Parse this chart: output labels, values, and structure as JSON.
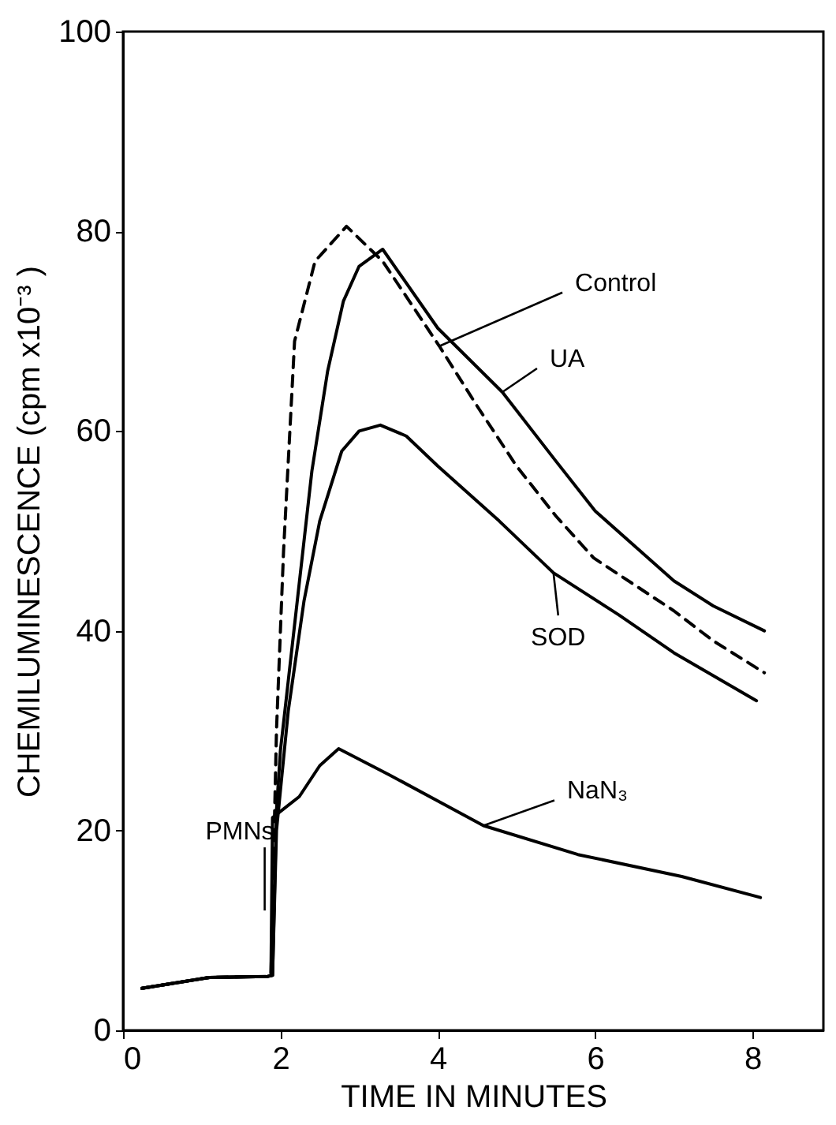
{
  "chart_data": {
    "type": "line",
    "xlabel": "TIME IN MINUTES",
    "ylabel": "CHEMILUMINESCENCE (cpm x10⁻³ )",
    "xlim": [
      0,
      8.9
    ],
    "ylim": [
      0,
      100
    ],
    "xticks": [
      0,
      2,
      4,
      6,
      8
    ],
    "yticks": [
      0,
      20,
      40,
      60,
      80,
      100
    ],
    "series": [
      {
        "color": "#000000",
        "line_style": "dashed",
        "x": [
          0.24,
          1.1,
          1.84,
          1.88,
          1.95,
          2.04,
          2.18,
          2.44,
          2.84,
          3.3,
          4.02,
          4.5,
          5.0,
          5.5,
          5.98,
          7.0,
          7.5,
          8.15
        ],
        "values": [
          4.2,
          5.3,
          5.4,
          5.5,
          30,
          48,
          69,
          77,
          80.5,
          77,
          68.5,
          62.5,
          56.5,
          51.5,
          47.3,
          42,
          39,
          35.8
        ]
      },
      {
        "color": "#000000",
        "line_style": "solid",
        "x": [
          0.24,
          1.1,
          1.84,
          1.9,
          1.95,
          2.0,
          2.2,
          2.4,
          2.6,
          2.8,
          3.0,
          3.3,
          4.0,
          4.82,
          5.5,
          6.0,
          6.5,
          7.0,
          7.5,
          8.15
        ],
        "values": [
          4.2,
          5.3,
          5.4,
          5.5,
          22,
          28,
          42,
          56,
          66,
          73,
          76.5,
          78.2,
          70.3,
          63.9,
          57,
          52,
          48.5,
          45,
          42.5,
          40
        ]
      },
      {
        "color": "#000000",
        "line_style": "solid",
        "x": [
          0.24,
          1.1,
          1.84,
          1.9,
          1.95,
          2.1,
          2.3,
          2.5,
          2.78,
          3.0,
          3.27,
          3.6,
          4.0,
          4.78,
          5.47,
          6.3,
          7.0,
          8.05
        ],
        "values": [
          4.2,
          5.3,
          5.4,
          5.5,
          20,
          32,
          43,
          51,
          58,
          60,
          60.6,
          59.5,
          56.5,
          51,
          45.8,
          41.6,
          37.8,
          33
        ]
      },
      {
        "color": "#000000",
        "line_style": "solid",
        "x": [
          0.24,
          1.1,
          1.84,
          1.88,
          1.9,
          2.24,
          2.5,
          2.74,
          3.38,
          4.58,
          5.78,
          7.1,
          8.1
        ],
        "values": [
          4.2,
          5.3,
          5.4,
          5.5,
          21.3,
          23.4,
          26.5,
          28.2,
          25.6,
          20.5,
          17.6,
          15.4,
          13.3
        ]
      }
    ],
    "annotations": [
      {
        "text": "Control",
        "x": 4.02,
        "y": 68.5
      },
      {
        "text": "UA",
        "x": 4.82,
        "y": 63.9
      },
      {
        "text": "SOD",
        "x": 5.47,
        "y": 45.8
      },
      {
        "text": "NaN₃",
        "x": 4.58,
        "y": 20.5
      },
      {
        "text": "PMNs",
        "x": 1.8,
        "y": 12
      }
    ]
  }
}
